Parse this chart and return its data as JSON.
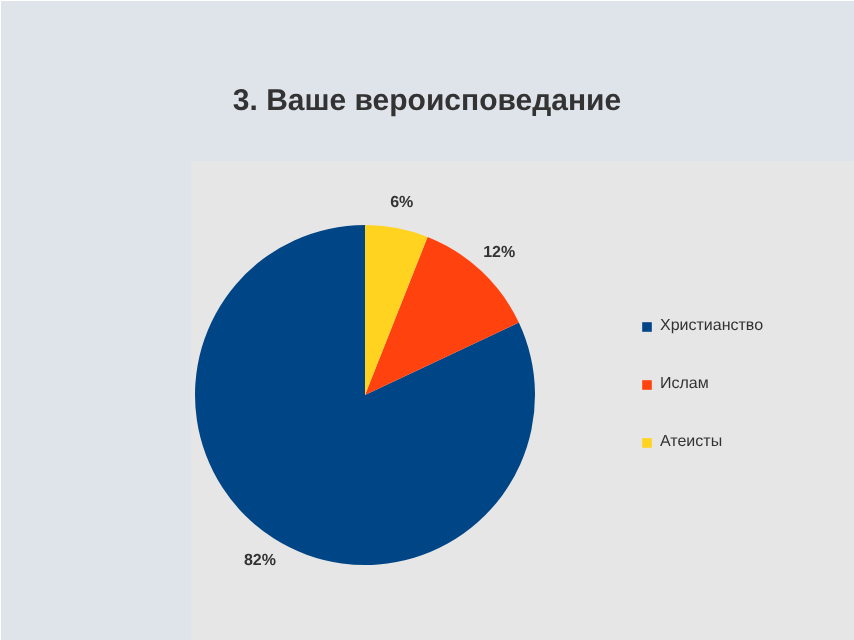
{
  "chart_data": {
    "type": "pie",
    "title": "3. Ваше вероисповедание",
    "categories": [
      "Христианство",
      "Ислам",
      "Атеисты"
    ],
    "values": [
      82,
      12,
      6
    ],
    "value_labels": [
      "82%",
      "12%",
      "6%"
    ],
    "colors": [
      "#004586",
      "#ff420e",
      "#ffd320"
    ],
    "legend": "right"
  }
}
